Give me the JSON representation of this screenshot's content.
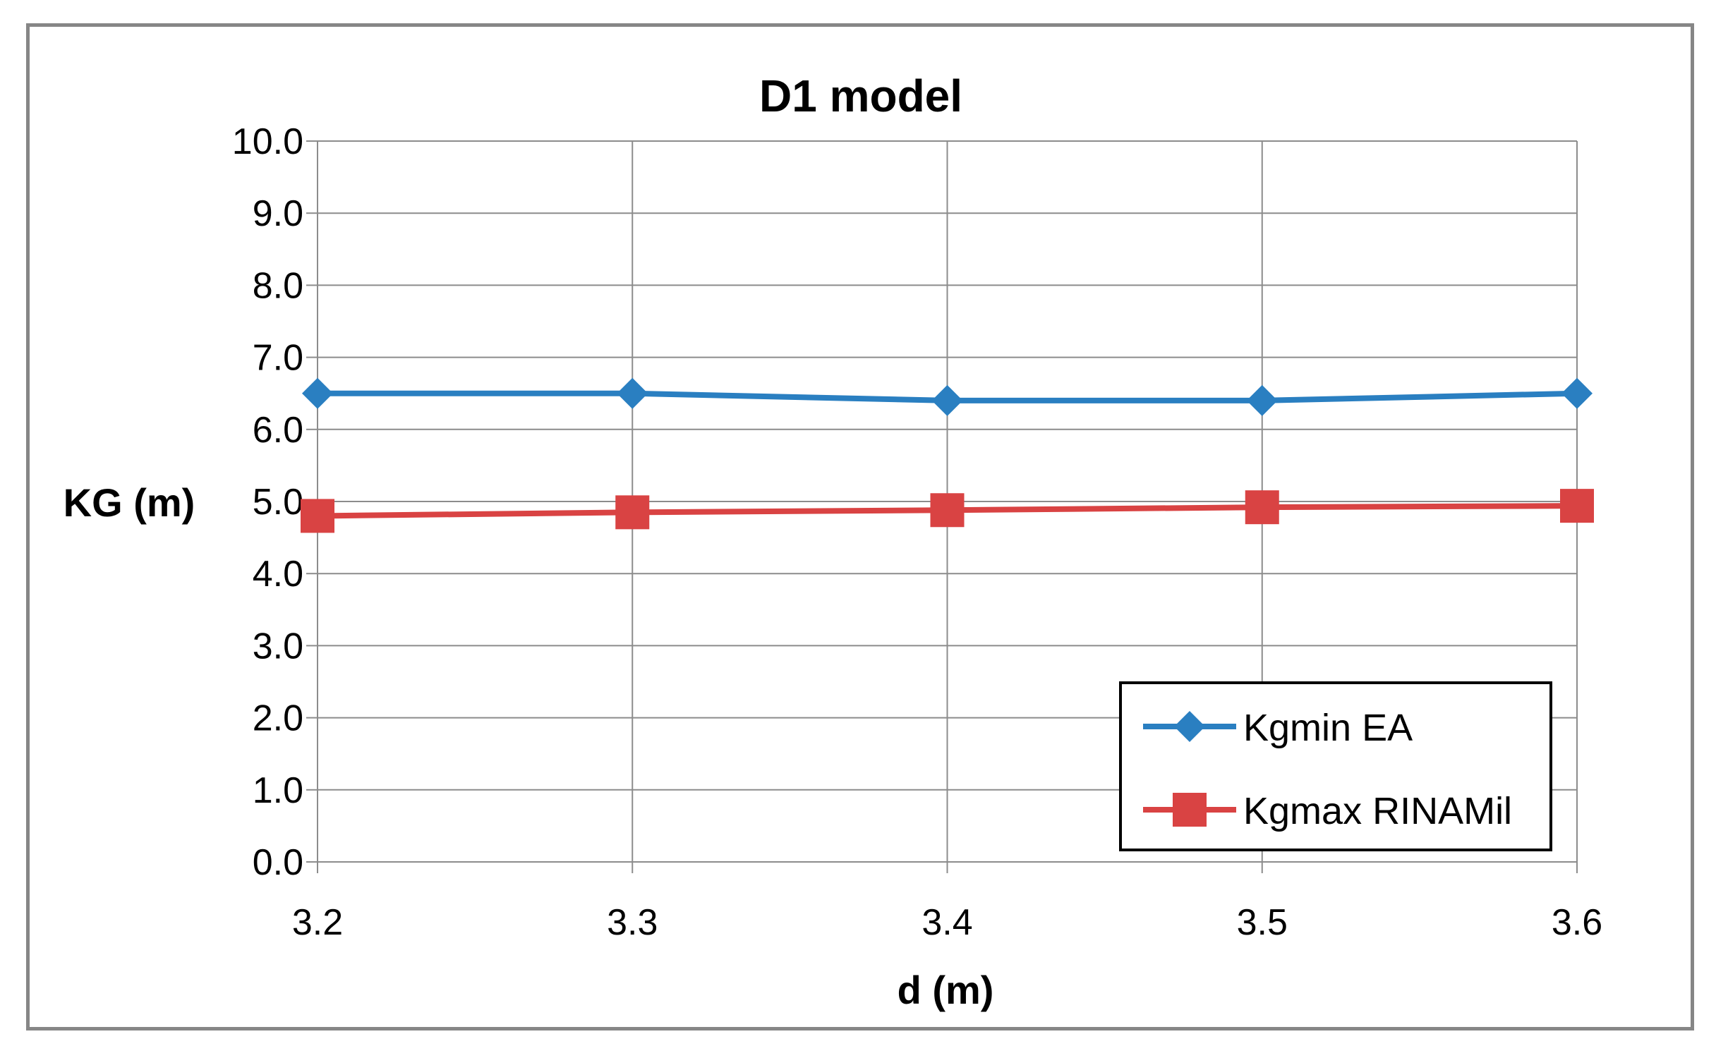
{
  "chart_data": {
    "type": "line",
    "title": "D1 model",
    "xlabel": "d (m)",
    "ylabel": "KG (m)",
    "x": [
      3.2,
      3.3,
      3.4,
      3.5,
      3.6
    ],
    "x_tick_labels": [
      "3.2",
      "3.3",
      "3.4",
      "3.5",
      "3.6"
    ],
    "y_tick_labels": [
      "0.0",
      "1.0",
      "2.0",
      "3.0",
      "4.0",
      "5.0",
      "6.0",
      "7.0",
      "8.0",
      "9.0",
      "10.0"
    ],
    "ylim": [
      0,
      10
    ],
    "grid": true,
    "legend_position": "bottom-right",
    "series": [
      {
        "name": "Kgmin EA",
        "marker": "diamond",
        "color": "#2a7fc1",
        "values": [
          6.5,
          6.5,
          6.4,
          6.4,
          6.5
        ]
      },
      {
        "name": "Kgmax RINAMil",
        "marker": "square",
        "color": "#d94343",
        "values": [
          4.8,
          4.85,
          4.88,
          4.92,
          4.94
        ]
      }
    ]
  }
}
